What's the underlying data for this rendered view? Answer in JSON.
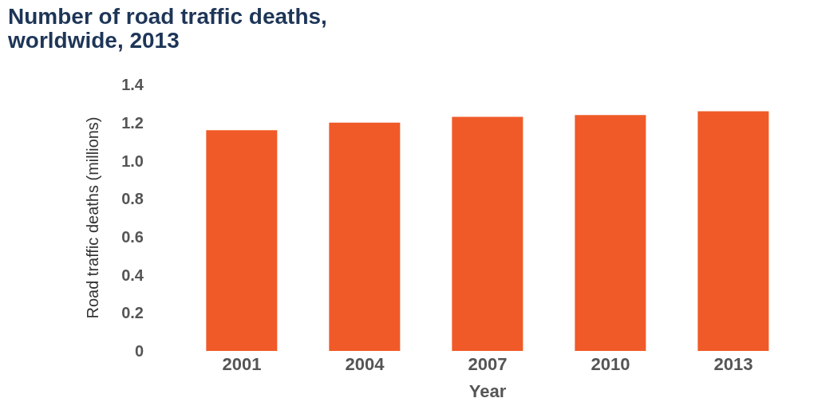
{
  "chart_data": {
    "type": "bar",
    "title": "Number of road traffic deaths, worldwide, 2013",
    "xlabel": "Year",
    "ylabel": "Road traffic deaths (millions)",
    "categories": [
      "2001",
      "2004",
      "2007",
      "2010",
      "2013"
    ],
    "values": [
      1.16,
      1.2,
      1.23,
      1.24,
      1.26
    ],
    "color": "#f05a28",
    "ylim": [
      0,
      1.4
    ],
    "yticks": [
      {
        "value": 0,
        "label": "0"
      },
      {
        "value": 0.2,
        "label": "0.2"
      },
      {
        "value": 0.4,
        "label": "0.4"
      },
      {
        "value": 0.6,
        "label": "0.6"
      },
      {
        "value": 0.8,
        "label": "0.8"
      },
      {
        "value": 1,
        "label": "1.0"
      },
      {
        "value": 1.2,
        "label": "1.2"
      },
      {
        "value": 1.4,
        "label": "1.4"
      }
    ],
    "grid": false
  }
}
